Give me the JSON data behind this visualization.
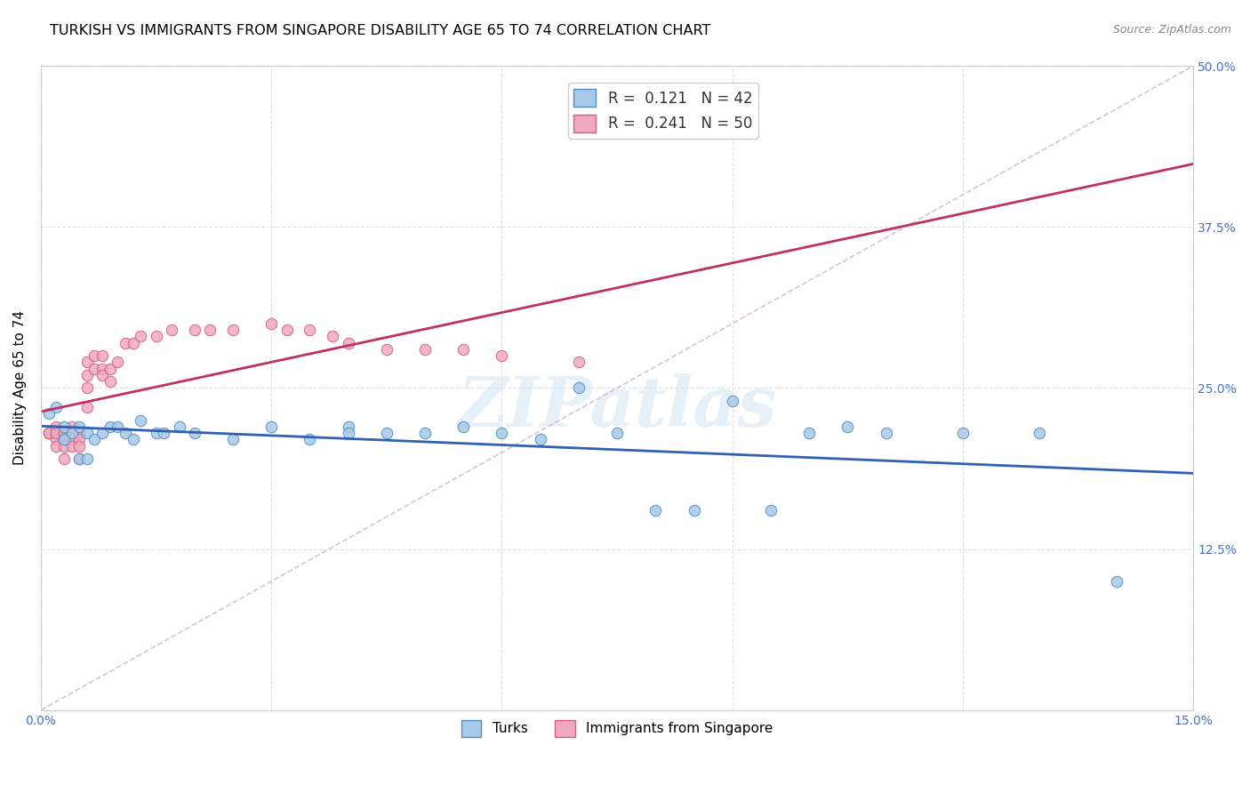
{
  "title": "TURKISH VS IMMIGRANTS FROM SINGAPORE DISABILITY AGE 65 TO 74 CORRELATION CHART",
  "source": "Source: ZipAtlas.com",
  "ylabel": "Disability Age 65 to 74",
  "xlabel": "",
  "xlim": [
    0.0,
    0.15
  ],
  "ylim": [
    0.0,
    0.5
  ],
  "xticks": [
    0.0,
    0.03,
    0.06,
    0.09,
    0.12,
    0.15
  ],
  "yticks": [
    0.0,
    0.125,
    0.25,
    0.375,
    0.5
  ],
  "turks_color": "#a8c8e8",
  "turks_edge_color": "#5090c0",
  "singapore_color": "#f0a8c0",
  "singapore_edge_color": "#d06080",
  "trend_turks_color": "#3060b0",
  "trend_singapore_color": "#c03060",
  "diagonal_color": "#d0b0b8",
  "watermark_text": "ZIPatlas",
  "turks_x": [
    0.001,
    0.002,
    0.003,
    0.003,
    0.004,
    0.005,
    0.005,
    0.006,
    0.006,
    0.007,
    0.008,
    0.009,
    0.01,
    0.011,
    0.012,
    0.013,
    0.015,
    0.016,
    0.018,
    0.02,
    0.025,
    0.03,
    0.035,
    0.04,
    0.04,
    0.045,
    0.05,
    0.055,
    0.06,
    0.065,
    0.07,
    0.075,
    0.08,
    0.085,
    0.09,
    0.095,
    0.1,
    0.105,
    0.11,
    0.12,
    0.13,
    0.14
  ],
  "turks_y": [
    0.23,
    0.235,
    0.21,
    0.22,
    0.215,
    0.22,
    0.195,
    0.215,
    0.195,
    0.21,
    0.215,
    0.22,
    0.22,
    0.215,
    0.21,
    0.225,
    0.215,
    0.215,
    0.22,
    0.215,
    0.21,
    0.22,
    0.21,
    0.22,
    0.215,
    0.215,
    0.215,
    0.22,
    0.215,
    0.21,
    0.25,
    0.215,
    0.155,
    0.155,
    0.24,
    0.155,
    0.215,
    0.22,
    0.215,
    0.215,
    0.215,
    0.1
  ],
  "singapore_x": [
    0.001,
    0.001,
    0.001,
    0.002,
    0.002,
    0.002,
    0.002,
    0.002,
    0.003,
    0.003,
    0.003,
    0.003,
    0.003,
    0.004,
    0.004,
    0.004,
    0.005,
    0.005,
    0.005,
    0.005,
    0.006,
    0.006,
    0.006,
    0.006,
    0.007,
    0.007,
    0.008,
    0.008,
    0.008,
    0.009,
    0.009,
    0.01,
    0.011,
    0.012,
    0.013,
    0.015,
    0.017,
    0.02,
    0.022,
    0.025,
    0.03,
    0.032,
    0.035,
    0.038,
    0.04,
    0.045,
    0.05,
    0.055,
    0.06,
    0.07
  ],
  "singapore_y": [
    0.215,
    0.215,
    0.215,
    0.22,
    0.215,
    0.21,
    0.215,
    0.205,
    0.215,
    0.21,
    0.21,
    0.205,
    0.195,
    0.22,
    0.21,
    0.205,
    0.215,
    0.21,
    0.205,
    0.195,
    0.27,
    0.26,
    0.25,
    0.235,
    0.275,
    0.265,
    0.275,
    0.265,
    0.26,
    0.265,
    0.255,
    0.27,
    0.285,
    0.285,
    0.29,
    0.29,
    0.295,
    0.295,
    0.295,
    0.295,
    0.3,
    0.295,
    0.295,
    0.29,
    0.285,
    0.28,
    0.28,
    0.28,
    0.275,
    0.27
  ],
  "marker_size": 80,
  "title_fontsize": 11.5,
  "axis_fontsize": 11,
  "tick_fontsize": 10,
  "legend_fontsize": 12
}
